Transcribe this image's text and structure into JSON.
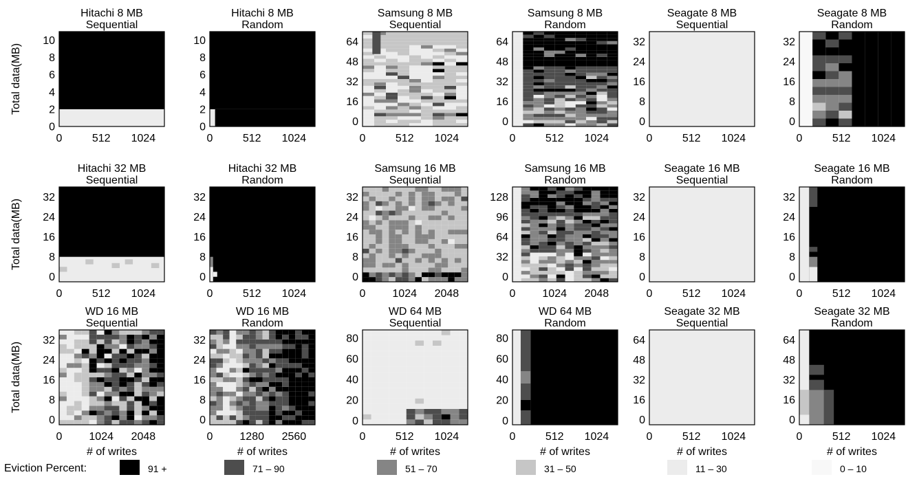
{
  "chart_data": [
    {
      "type": "heatmap",
      "title": [
        "Hitachi 8 MB",
        "Sequential"
      ],
      "ylabel": "Total data(MB)",
      "xlabel": "",
      "xticks": [
        "0",
        "512",
        "1024"
      ],
      "yticks": [
        "0",
        "2",
        "4",
        "6",
        "8",
        "10"
      ],
      "ylim": [
        0,
        11
      ],
      "xlim": [
        0,
        1280
      ],
      "rows": [
        {
          "y": [
            0,
            2
          ],
          "cells": [
            {
              "x": [
                0,
                1280
              ],
              "level": 4
            }
          ]
        },
        {
          "y": [
            2,
            11
          ],
          "cells": [
            {
              "x": [
                0,
                1280
              ],
              "level": 0
            }
          ]
        }
      ]
    },
    {
      "type": "heatmap",
      "title": [
        "Hitachi 8 MB",
        "Random"
      ],
      "ylabel": "",
      "xlabel": "",
      "xticks": [
        "0",
        "512",
        "1024"
      ],
      "yticks": [
        "0",
        "2",
        "4",
        "6",
        "8",
        "10"
      ],
      "ylim": [
        0,
        11
      ],
      "xlim": [
        0,
        1280
      ],
      "rows": [
        {
          "y": [
            0,
            2
          ],
          "cells": [
            {
              "x": [
                0,
                64
              ],
              "level": 4
            },
            {
              "x": [
                64,
                1280
              ],
              "level": 0
            }
          ]
        },
        {
          "y": [
            2,
            11
          ],
          "cells": [
            {
              "x": [
                0,
                1280
              ],
              "level": 0
            }
          ]
        }
      ]
    },
    {
      "type": "heatmap",
      "title": [
        "Samsung 8 MB",
        "Sequential"
      ],
      "ylabel": "",
      "xlabel": "",
      "xticks": [
        "0",
        "512",
        "1024"
      ],
      "yticks": [
        "0",
        "16",
        "32",
        "48",
        "64"
      ],
      "ylim": [
        -4,
        72
      ],
      "xlim": [
        0,
        1280
      ],
      "pattern": "samsung8seq"
    },
    {
      "type": "heatmap",
      "title": [
        "Samsung 8 MB",
        "Random"
      ],
      "ylabel": "",
      "xlabel": "",
      "xticks": [
        "0",
        "512",
        "1024"
      ],
      "yticks": [
        "0",
        "16",
        "32",
        "48",
        "64"
      ],
      "ylim": [
        -4,
        72
      ],
      "xlim": [
        0,
        1280
      ],
      "pattern": "samsung8rand"
    },
    {
      "type": "heatmap",
      "title": [
        "Seagate 8 MB",
        "Sequential"
      ],
      "ylabel": "",
      "xlabel": "",
      "xticks": [
        "0",
        "512",
        "1024"
      ],
      "yticks": [
        "0",
        "8",
        "16",
        "24",
        "32"
      ],
      "ylim": [
        -2,
        36
      ],
      "xlim": [
        0,
        1280
      ],
      "rows": [
        {
          "y": [
            -2,
            36
          ],
          "cells": [
            {
              "x": [
                0,
                1280
              ],
              "level": 4
            }
          ]
        }
      ]
    },
    {
      "type": "heatmap",
      "title": [
        "Seagate 8 MB",
        "Random"
      ],
      "ylabel": "",
      "xlabel": "",
      "xticks": [
        "0",
        "512",
        "1024"
      ],
      "yticks": [
        "0",
        "8",
        "16",
        "24",
        "32"
      ],
      "ylim": [
        -2,
        36
      ],
      "xlim": [
        0,
        1280
      ],
      "pattern": "seagate8rand"
    },
    {
      "type": "heatmap",
      "title": [
        "Hitachi 32 MB",
        "Sequential"
      ],
      "ylabel": "Total data(MB)",
      "xlabel": "",
      "xticks": [
        "0",
        "512",
        "1024"
      ],
      "yticks": [
        "0",
        "8",
        "16",
        "24",
        "32"
      ],
      "ylim": [
        -2,
        36
      ],
      "xlim": [
        0,
        1280
      ],
      "pattern": "hitachi32seq"
    },
    {
      "type": "heatmap",
      "title": [
        "Hitachi 32 MB",
        "Random"
      ],
      "ylabel": "",
      "xlabel": "",
      "xticks": [
        "0",
        "512",
        "1024"
      ],
      "yticks": [
        "0",
        "8",
        "16",
        "24",
        "32"
      ],
      "ylim": [
        -2,
        36
      ],
      "xlim": [
        0,
        1280
      ],
      "pattern": "hitachi32rand"
    },
    {
      "type": "heatmap",
      "title": [
        "Samsung 16 MB",
        "Sequential"
      ],
      "ylabel": "",
      "xlabel": "",
      "xticks": [
        "0",
        "1024",
        "2048"
      ],
      "yticks": [
        "0",
        "8",
        "16",
        "24",
        "32"
      ],
      "ylim": [
        -2,
        36
      ],
      "xlim": [
        0,
        2560
      ],
      "pattern": "samsung16seq"
    },
    {
      "type": "heatmap",
      "title": [
        "Samsung 16 MB",
        "Random"
      ],
      "ylabel": "",
      "xlabel": "",
      "xticks": [
        "0",
        "1024",
        "2048"
      ],
      "yticks": [
        "0",
        "32",
        "64",
        "96",
        "128"
      ],
      "ylim": [
        -8,
        144
      ],
      "xlim": [
        0,
        2560
      ],
      "pattern": "samsung16rand"
    },
    {
      "type": "heatmap",
      "title": [
        "Seagate 16 MB",
        "Sequential"
      ],
      "ylabel": "",
      "xlabel": "",
      "xticks": [
        "0",
        "512",
        "1024"
      ],
      "yticks": [
        "0",
        "8",
        "16",
        "24",
        "32"
      ],
      "ylim": [
        -2,
        36
      ],
      "xlim": [
        0,
        1280
      ],
      "rows": [
        {
          "y": [
            -2,
            36
          ],
          "cells": [
            {
              "x": [
                0,
                1280
              ],
              "level": 4
            }
          ]
        }
      ]
    },
    {
      "type": "heatmap",
      "title": [
        "Seagate 16 MB",
        "Random"
      ],
      "ylabel": "",
      "xlabel": "",
      "xticks": [
        "0",
        "512",
        "1024"
      ],
      "yticks": [
        "0",
        "8",
        "16",
        "24",
        "32"
      ],
      "ylim": [
        -2,
        36
      ],
      "xlim": [
        0,
        1280
      ],
      "pattern": "seagate16rand"
    },
    {
      "type": "heatmap",
      "title": [
        "WD 16 MB",
        "Sequential"
      ],
      "ylabel": "Total data(MB)",
      "xlabel": "# of writes",
      "xticks": [
        "0",
        "1024",
        "2048"
      ],
      "yticks": [
        "0",
        "8",
        "16",
        "24",
        "32"
      ],
      "ylim": [
        -2,
        36
      ],
      "xlim": [
        0,
        2560
      ],
      "pattern": "wd16seq"
    },
    {
      "type": "heatmap",
      "title": [
        "WD 16 MB",
        "Random"
      ],
      "ylabel": "",
      "xlabel": "# of writes",
      "xticks": [
        "0",
        "1280",
        "2560"
      ],
      "yticks": [
        "0",
        "8",
        "16",
        "24",
        "32"
      ],
      "ylim": [
        -2,
        36
      ],
      "xlim": [
        0,
        3200
      ],
      "pattern": "wd16rand"
    },
    {
      "type": "heatmap",
      "title": [
        "WD 64 MB",
        "Sequential"
      ],
      "ylabel": "",
      "xlabel": "# of writes",
      "xticks": [
        "0",
        "512",
        "1024"
      ],
      "yticks": [
        "0",
        "20",
        "40",
        "60",
        "80"
      ],
      "ylim": [
        -4,
        88
      ],
      "xlim": [
        0,
        1280
      ],
      "pattern": "wd64seq"
    },
    {
      "type": "heatmap",
      "title": [
        "WD 64 MB",
        "Random"
      ],
      "ylabel": "",
      "xlabel": "# of writes",
      "xticks": [
        "0",
        "512",
        "1024"
      ],
      "yticks": [
        "0",
        "20",
        "40",
        "60",
        "80"
      ],
      "ylim": [
        -4,
        88
      ],
      "xlim": [
        0,
        1280
      ],
      "pattern": "wd64rand"
    },
    {
      "type": "heatmap",
      "title": [
        "Seagate 32 MB",
        "Sequential"
      ],
      "ylabel": "",
      "xlabel": "# of writes",
      "xticks": [
        "0",
        "512",
        "1024"
      ],
      "yticks": [
        "0",
        "16",
        "32",
        "48",
        "64"
      ],
      "ylim": [
        -4,
        72
      ],
      "xlim": [
        0,
        1280
      ],
      "rows": [
        {
          "y": [
            -4,
            72
          ],
          "cells": [
            {
              "x": [
                0,
                1280
              ],
              "level": 4
            }
          ]
        }
      ]
    },
    {
      "type": "heatmap",
      "title": [
        "Seagate 32 MB",
        "Random"
      ],
      "ylabel": "",
      "xlabel": "# of writes",
      "xticks": [
        "0",
        "512",
        "1024"
      ],
      "yticks": [
        "0",
        "16",
        "32",
        "48",
        "64"
      ],
      "ylim": [
        -4,
        72
      ],
      "xlim": [
        0,
        1280
      ],
      "pattern": "seagate32rand"
    }
  ],
  "legend": {
    "title": "Eviction Percent:",
    "items": [
      {
        "label": "91 +",
        "color": "#000000"
      },
      {
        "label": "71 – 90",
        "color": "#4d4d4d"
      },
      {
        "label": "51 – 70",
        "color": "#858585"
      },
      {
        "label": "31 – 50",
        "color": "#c6c6c6"
      },
      {
        "label": "11 – 30",
        "color": "#ececec"
      },
      {
        "label": "0 – 10",
        "color": "#f8f8f8"
      }
    ]
  },
  "level_colors": [
    "#000000",
    "#4d4d4d",
    "#858585",
    "#c6c6c6",
    "#ececec",
    "#f8f8f8"
  ]
}
